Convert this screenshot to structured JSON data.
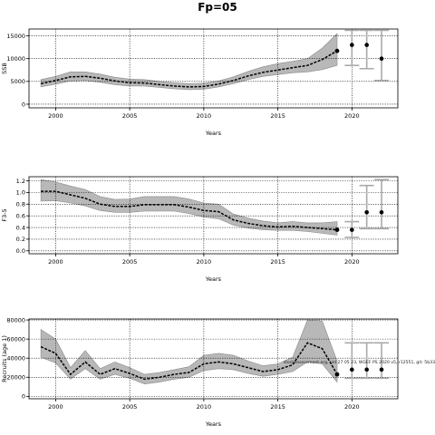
{
  "title": "Fp=05",
  "stamp": "stockassessment.org, pid 27 05 23, WGEF PS 2020 v5, r12551, git: 5b33",
  "chart_data": [
    {
      "type": "line",
      "ylabel": "SSB",
      "xlabel": "Years",
      "xlim": [
        1998.2,
        2023.1
      ],
      "ylim": [
        -800,
        16500
      ],
      "xticks": [
        2000,
        2005,
        2010,
        2015,
        2020
      ],
      "yticks": [
        0,
        5000,
        10000,
        15000
      ],
      "ytick_labels": [
        "0",
        "5000",
        "10000",
        "15000"
      ],
      "grid": true,
      "x": [
        1999,
        2000,
        2001,
        2002,
        2003,
        2004,
        2005,
        2006,
        2007,
        2008,
        2009,
        2010,
        2011,
        2012,
        2013,
        2014,
        2015,
        2016,
        2017,
        2018,
        2019
      ],
      "estimate": [
        4500,
        5200,
        6000,
        6100,
        5700,
        5100,
        4700,
        4650,
        4300,
        4000,
        3800,
        3900,
        4400,
        5200,
        6200,
        7000,
        7500,
        8000,
        8500,
        9800,
        11700
      ],
      "lower": [
        3800,
        4400,
        5100,
        5200,
        4800,
        4300,
        4000,
        4000,
        3700,
        3400,
        3200,
        3300,
        3800,
        4500,
        5400,
        6100,
        6500,
        6900,
        7100,
        7600,
        8500
      ],
      "upper": [
        5400,
        6100,
        7100,
        7100,
        6600,
        5900,
        5500,
        5400,
        5000,
        4700,
        4500,
        4600,
        5100,
        6000,
        7200,
        8200,
        8900,
        9400,
        10000,
        12300,
        15500
      ],
      "forecast": {
        "x": [
          2020,
          2021,
          2022
        ],
        "median": [
          13000,
          13000,
          10000
        ],
        "lower": [
          8500,
          7800,
          5200
        ],
        "upper": [
          16200,
          16200,
          16200
        ]
      }
    },
    {
      "type": "line",
      "ylabel": "F3-5",
      "xlabel": "Years",
      "xlim": [
        1998.2,
        2023.1
      ],
      "ylim": [
        -0.05,
        1.27
      ],
      "xticks": [
        2000,
        2005,
        2010,
        2015,
        2020
      ],
      "yticks": [
        0,
        0.2,
        0.4,
        0.6,
        0.8,
        1.0,
        1.2
      ],
      "ytick_labels": [
        "0.0",
        "0.2",
        "0.4",
        "0.6",
        "0.8",
        "1.0",
        "1.2"
      ],
      "grid": true,
      "x": [
        1999,
        2000,
        2001,
        2002,
        2003,
        2004,
        2005,
        2006,
        2007,
        2008,
        2009,
        2010,
        2011,
        2012,
        2013,
        2014,
        2015,
        2016,
        2017,
        2018,
        2019
      ],
      "estimate": [
        1.02,
        1.02,
        0.96,
        0.9,
        0.8,
        0.76,
        0.76,
        0.79,
        0.79,
        0.79,
        0.75,
        0.69,
        0.67,
        0.53,
        0.47,
        0.43,
        0.41,
        0.42,
        0.4,
        0.38,
        0.36
      ],
      "lower": [
        0.85,
        0.86,
        0.82,
        0.77,
        0.69,
        0.66,
        0.66,
        0.68,
        0.68,
        0.68,
        0.64,
        0.58,
        0.55,
        0.44,
        0.39,
        0.36,
        0.35,
        0.35,
        0.33,
        0.3,
        0.27
      ],
      "upper": [
        1.22,
        1.18,
        1.11,
        1.05,
        0.93,
        0.88,
        0.89,
        0.93,
        0.93,
        0.93,
        0.89,
        0.82,
        0.8,
        0.63,
        0.56,
        0.51,
        0.48,
        0.5,
        0.48,
        0.48,
        0.5
      ],
      "forecast": {
        "x": [
          2020,
          2021,
          2022
        ],
        "median": [
          0.36,
          0.66,
          0.66
        ],
        "lower": [
          0.23,
          0.38,
          0.38
        ],
        "upper": [
          0.5,
          1.12,
          1.22
        ]
      }
    },
    {
      "type": "line",
      "ylabel": "Recruits (age 1)",
      "xlabel": "Years",
      "xlim": [
        1998.2,
        2023.1
      ],
      "ylim": [
        -2500,
        81000
      ],
      "xticks": [
        2000,
        2005,
        2010,
        2015,
        2020
      ],
      "yticks": [
        0,
        20000,
        40000,
        60000,
        80000
      ],
      "ytick_labels": [
        "0",
        "20000",
        "40000",
        "60000",
        "80000"
      ],
      "grid": true,
      "x": [
        1999,
        2000,
        2001,
        2002,
        2003,
        2004,
        2005,
        2006,
        2007,
        2008,
        2009,
        2010,
        2011,
        2012,
        2013,
        2014,
        2015,
        2016,
        2017,
        2018,
        2019
      ],
      "estimate": [
        52000,
        45000,
        23000,
        36000,
        23000,
        29000,
        24000,
        18000,
        20000,
        23000,
        25000,
        34000,
        36000,
        34000,
        30000,
        26000,
        28000,
        33000,
        56000,
        50000,
        23000
      ],
      "lower": [
        41000,
        35000,
        18000,
        29000,
        18000,
        23000,
        19000,
        13000,
        15000,
        18000,
        20000,
        27000,
        29000,
        28000,
        24000,
        21000,
        23000,
        26000,
        36000,
        34000,
        15000
      ],
      "upper": [
        70000,
        60000,
        30000,
        48000,
        29000,
        36000,
        30000,
        23000,
        25000,
        28000,
        31000,
        43000,
        45000,
        43000,
        37000,
        32000,
        34000,
        41000,
        80000,
        79000,
        37000
      ],
      "forecast": {
        "x": [
          2020,
          2021,
          2022
        ],
        "median": [
          28000,
          28000,
          28000
        ],
        "lower": [
          19000,
          19000,
          19000
        ],
        "upper": [
          56000,
          56000,
          56000
        ]
      }
    }
  ]
}
